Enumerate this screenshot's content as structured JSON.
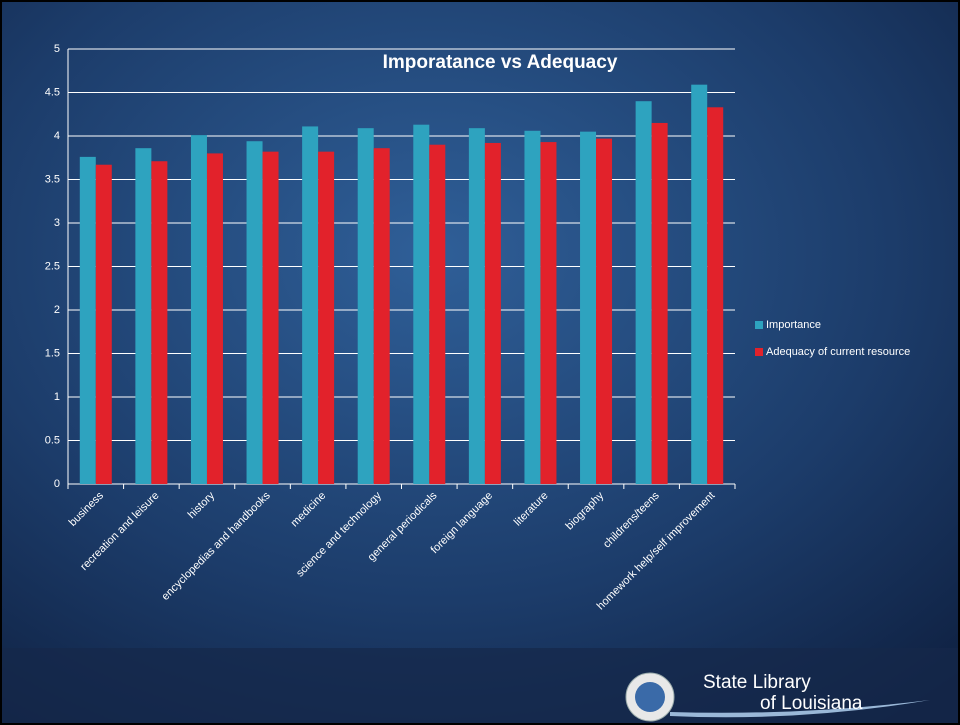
{
  "chart_data": {
    "type": "bar",
    "title": "Imporatance vs Adequacy",
    "categories": [
      "business",
      "recreation and leisure",
      "history",
      "encyclopedias and handbooks",
      "medicine",
      "science and technology",
      "general periodicals",
      "foreign language",
      "literature",
      "biography",
      "childrens/teens",
      "homework help/self improvement"
    ],
    "series": [
      {
        "name": "Importance",
        "color": "#2ea3bf",
        "values": [
          3.76,
          3.86,
          4.01,
          3.94,
          4.11,
          4.09,
          4.13,
          4.09,
          4.06,
          4.05,
          4.4,
          4.59
        ]
      },
      {
        "name": "Adequacy of current resource",
        "color": "#e2222b",
        "values": [
          3.67,
          3.71,
          3.8,
          3.82,
          3.82,
          3.86,
          3.9,
          3.92,
          3.93,
          3.97,
          4.15,
          4.33
        ]
      }
    ],
    "ylim": [
      0,
      5
    ],
    "yticks": [
      0,
      0.5,
      1,
      1.5,
      2,
      2.5,
      3,
      3.5,
      4,
      4.5,
      5
    ],
    "grid": true,
    "legend": "right"
  },
  "footer": {
    "line1": "State Library",
    "line2": "of Louisiana"
  }
}
